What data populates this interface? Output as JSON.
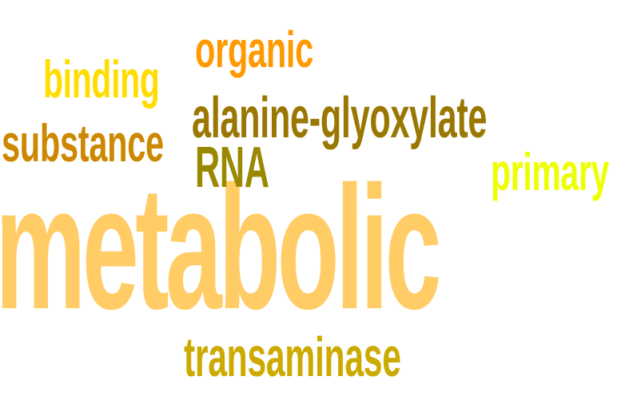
{
  "words": {
    "metabolic": {
      "text": "metabolic",
      "color": "#ffcc66"
    },
    "organic": {
      "text": "organic",
      "color": "#ff9900"
    },
    "binding": {
      "text": "binding",
      "color": "#ffdd00"
    },
    "alanine": {
      "text": "alanine-glyoxylate",
      "color": "#997700"
    },
    "substance": {
      "text": "substance",
      "color": "#cc8800"
    },
    "rna": {
      "text": "RNA",
      "color": "#998800"
    },
    "primary": {
      "text": "primary",
      "color": "#eeff00"
    },
    "transaminase": {
      "text": "transaminase",
      "color": "#ccaa00"
    }
  }
}
